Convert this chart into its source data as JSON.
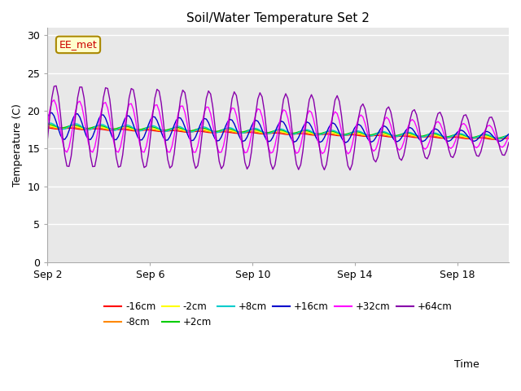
{
  "title": "Soil/Water Temperature Set 2",
  "xlabel": "Time",
  "ylabel": "Temperature (C)",
  "ylim": [
    0,
    31
  ],
  "yticks": [
    0,
    5,
    10,
    15,
    20,
    25,
    30
  ],
  "fig_bg_color": "#ffffff",
  "plot_bg_color": "#e8e8e8",
  "series": [
    {
      "label": "-16cm",
      "color": "#ff0000"
    },
    {
      "label": "-8cm",
      "color": "#ff8800"
    },
    {
      "label": "-2cm",
      "color": "#ffff00"
    },
    {
      "label": "+2cm",
      "color": "#00cc00"
    },
    {
      "label": "+8cm",
      "color": "#00cccc"
    },
    {
      "label": "+16cm",
      "color": "#0000cc"
    },
    {
      "label": "+32cm",
      "color": "#ff00ff"
    },
    {
      "label": "+64cm",
      "color": "#8800aa"
    }
  ],
  "annotation_text": "EE_met",
  "annotation_color": "#cc0000",
  "annotation_bg": "#ffffcc",
  "annotation_border": "#aa8800",
  "xticklabels": [
    "Sep 2",
    "Sep 6",
    "Sep 10",
    "Sep 14",
    "Sep 18"
  ],
  "xtick_positions": [
    0,
    4,
    8,
    12,
    16
  ],
  "total_days": 18
}
